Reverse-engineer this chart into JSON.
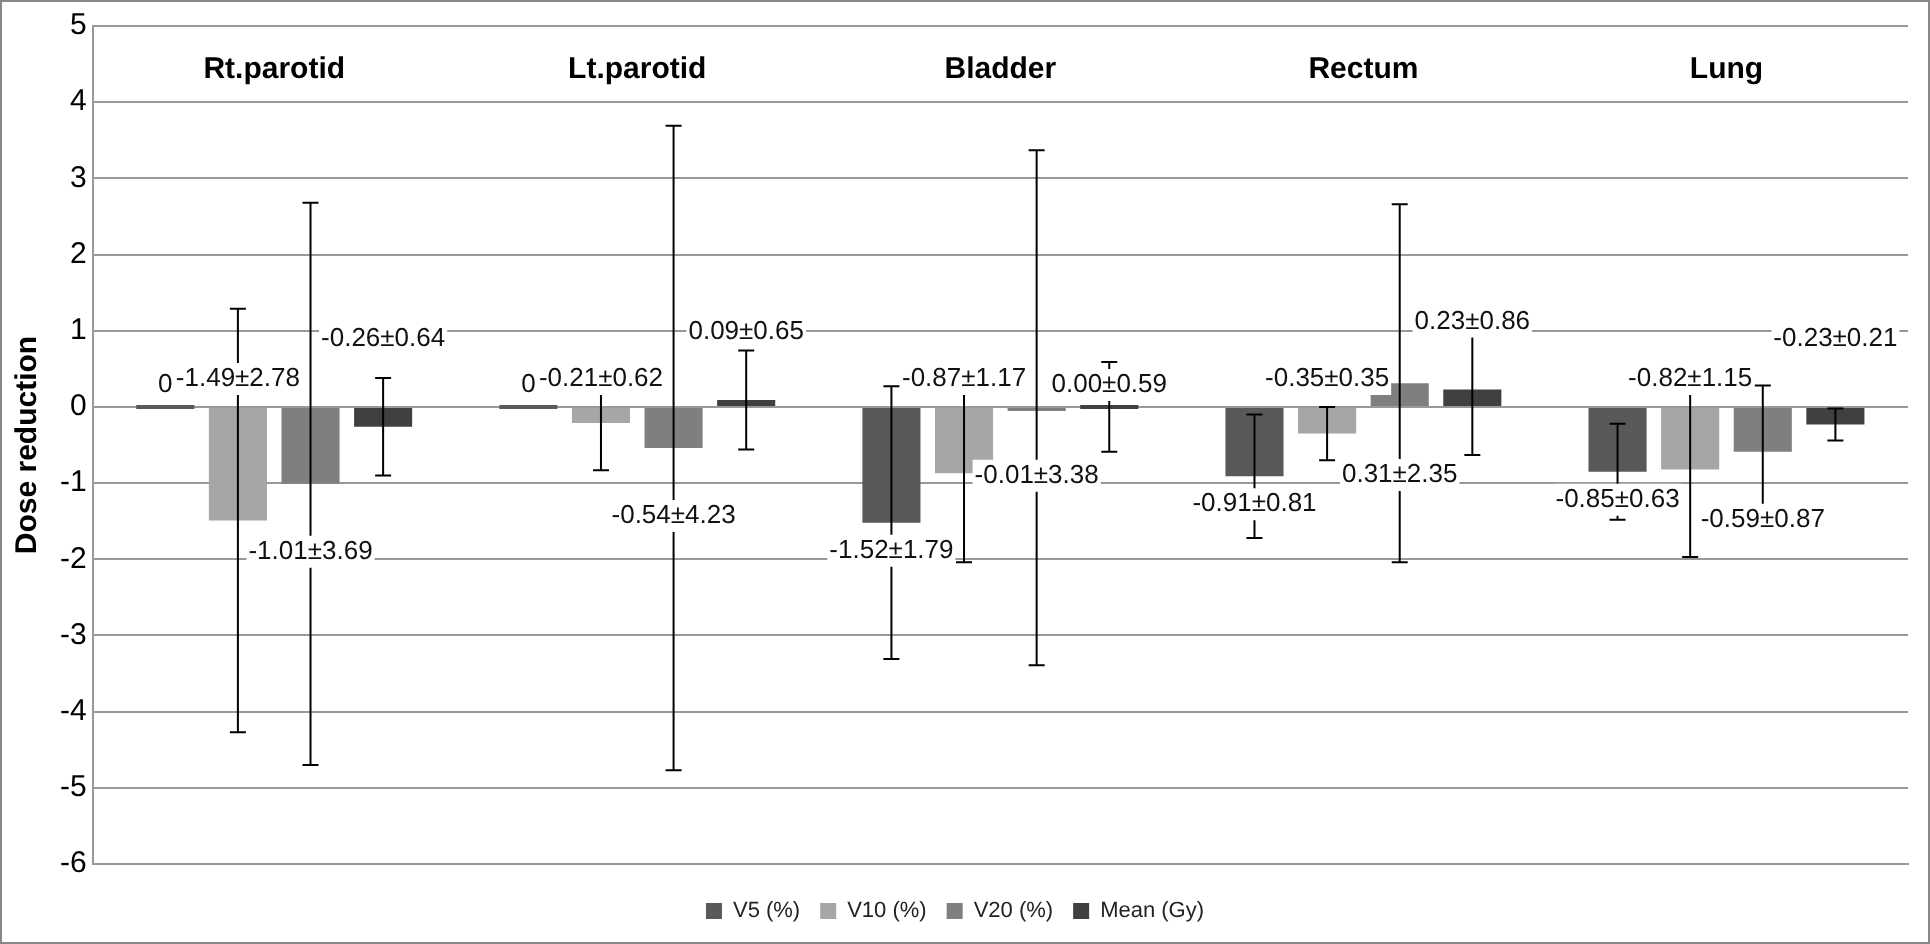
{
  "chart_data": {
    "type": "bar",
    "ylabel": "Dose reduction",
    "categories": [
      "Rt.parotid",
      "Lt.parotid",
      "Bladder",
      "Rectum",
      "Lung"
    ],
    "series": [
      {
        "name": "V5 (%)",
        "color": "#595959",
        "values": [
          0,
          0,
          -1.52,
          -0.91,
          -0.85
        ],
        "errors": [
          null,
          null,
          1.79,
          0.81,
          0.63
        ],
        "value_labels": [
          "0",
          "0",
          "-1.52±1.79",
          "-0.91±0.81",
          "-0.85±0.63"
        ]
      },
      {
        "name": "V10 (%)",
        "color": "#a6a6a6",
        "values": [
          -1.49,
          -0.21,
          -0.87,
          -0.35,
          -0.82
        ],
        "errors": [
          2.78,
          0.62,
          1.17,
          0.35,
          1.15
        ],
        "value_labels": [
          "-1.49±2.78",
          "-0.21±0.62",
          "-0.87±1.17",
          "-0.35±0.35",
          "-0.82±1.15"
        ]
      },
      {
        "name": "V20 (%)",
        "color": "#7f7f7f",
        "values": [
          -1.01,
          -0.54,
          -0.01,
          0.31,
          -0.59
        ],
        "errors": [
          3.69,
          4.23,
          3.38,
          2.35,
          0.87
        ],
        "value_labels": [
          "-1.01±3.69",
          "-0.54±4.23",
          "-0.01±3.38",
          "0.31±2.35",
          "-0.59±0.87"
        ]
      },
      {
        "name": "Mean (Gy)",
        "color": "#404040",
        "values": [
          -0.26,
          0.09,
          0.0,
          0.23,
          -0.23
        ],
        "errors": [
          0.64,
          0.65,
          0.59,
          0.86,
          0.21
        ],
        "value_labels": [
          "-0.26±0.64",
          "0.09±0.65",
          "0.00±0.59",
          "0.23±0.86",
          "-0.23±0.21"
        ]
      }
    ],
    "ylim": [
      -6,
      5
    ],
    "yticks": [
      -6,
      -5,
      -4,
      -3,
      -2,
      -1,
      0,
      1,
      2,
      3,
      4,
      5
    ],
    "grid": "y",
    "legend": "bottom"
  }
}
